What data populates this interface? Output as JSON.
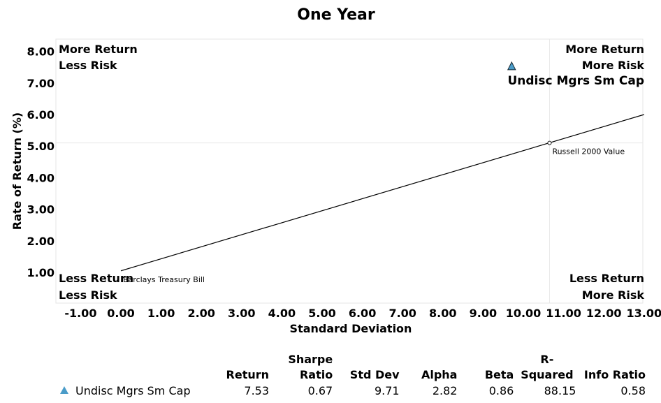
{
  "chart_data": {
    "type": "scatter",
    "title": "One Year",
    "xlabel": "Standard Deviation",
    "ylabel": "Rate of Return (%)",
    "xlim": [
      -1.3,
      13.0
    ],
    "ylim": [
      0.1,
      8.4
    ],
    "x_ticks": [
      "-1.00",
      "0.00",
      "1.00",
      "2.00",
      "3.00",
      "4.00",
      "5.00",
      "6.00",
      "7.00",
      "8.00",
      "9.00",
      "10.00",
      "11.00",
      "12.00",
      "13.00"
    ],
    "y_ticks": [
      "1.00",
      "2.00",
      "3.00",
      "4.00",
      "5.00",
      "6.00",
      "7.00",
      "8.00"
    ],
    "quadrants": {
      "top_left": [
        "More Return",
        "Less Risk"
      ],
      "top_right": [
        "More Return",
        "More Risk"
      ],
      "bottom_left": [
        "Less Return",
        "Less Risk"
      ],
      "bottom_right": [
        "Less Return",
        "More Risk"
      ]
    },
    "points": [
      {
        "name": "Undisc Mgrs Sm Cap",
        "x": 9.71,
        "y": 7.53,
        "marker": "triangle",
        "color": "#4a9cc9"
      },
      {
        "name": "Russell 2000 Value",
        "x": 10.65,
        "y": 5.1,
        "marker": "circle",
        "color": "#333333"
      },
      {
        "name": "Barclays Treasury Bill",
        "x": 0.0,
        "y": 1.0,
        "marker": "none",
        "color": "#000000"
      }
    ],
    "capital_market_line": {
      "x": [
        0.0,
        13.0
      ],
      "y": [
        1.05,
        6.0
      ]
    },
    "benchmark_crosshair": {
      "x": 10.65,
      "y": 5.1
    },
    "grid": false
  },
  "stats_table": {
    "headers": [
      {
        "line1": "",
        "line2": "Return"
      },
      {
        "line1": "Sharpe",
        "line2": "Ratio"
      },
      {
        "line1": "",
        "line2": "Std Dev"
      },
      {
        "line1": "",
        "line2": "Alpha"
      },
      {
        "line1": "",
        "line2": "Beta"
      },
      {
        "line1": "R-",
        "line2": "Squared"
      },
      {
        "line1": "",
        "line2": "Info Ratio"
      }
    ],
    "rows": [
      {
        "name": "Undisc Mgrs Sm Cap",
        "values": [
          "7.53",
          "0.67",
          "9.71",
          "2.82",
          "0.86",
          "88.15",
          "0.58"
        ]
      }
    ]
  }
}
